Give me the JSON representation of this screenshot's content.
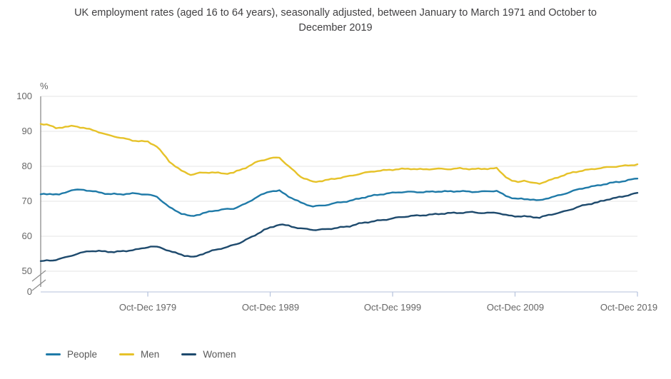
{
  "chart_data": {
    "type": "line",
    "title": "UK employment rates (aged 16 to 64 years), seasonally adjusted, between January to March 1971 and October to December 2019",
    "unit_label": "%",
    "grid": true,
    "axis_break_between": [
      50,
      0
    ],
    "ylim": [
      50,
      100
    ],
    "y_ticks": [
      100,
      90,
      80,
      70,
      60,
      50,
      0
    ],
    "x_ticks": [
      "Oct-Dec 1979",
      "Oct-Dec 1989",
      "Oct-Dec 1999",
      "Oct-Dec 2009",
      "Oct-Dec 2019"
    ],
    "x_start": "Jan-Mar 1971",
    "x_end": "Oct-Dec 2019",
    "legend_position": "bottom-left",
    "colors": {
      "people": "#1f7aa8",
      "men": "#e6c229",
      "women": "#1e4a6d",
      "gridline": "#e4e4e4",
      "y_axis": "#8c8c8c",
      "x_axis": "#c3cde2",
      "tick": "#b9c6de",
      "title_text": "#414042",
      "label_text": "#666666"
    },
    "series": [
      {
        "name": "People",
        "color": "#1f7aa8",
        "points": [
          [
            1971.0,
            72.0
          ],
          [
            1971.75,
            72.15
          ],
          [
            1972.5,
            71.85
          ],
          [
            1973.5,
            73.2
          ],
          [
            1974.5,
            73.3
          ],
          [
            1975.5,
            72.7
          ],
          [
            1976.5,
            72.1
          ],
          [
            1977.5,
            72.0
          ],
          [
            1978.75,
            72.25
          ],
          [
            1979.75,
            71.9
          ],
          [
            1980.5,
            71.3
          ],
          [
            1981.5,
            68.3
          ],
          [
            1982.5,
            66.5
          ],
          [
            1983.25,
            65.7
          ],
          [
            1984.0,
            66.3
          ],
          [
            1985.0,
            67.2
          ],
          [
            1986.0,
            67.7
          ],
          [
            1986.75,
            67.9
          ],
          [
            1987.75,
            69.3
          ],
          [
            1988.75,
            71.4
          ],
          [
            1989.75,
            72.9
          ],
          [
            1990.5,
            73.0
          ],
          [
            1991.25,
            71.4
          ],
          [
            1992.25,
            69.6
          ],
          [
            1993.25,
            68.5
          ],
          [
            1994.25,
            68.9
          ],
          [
            1995.25,
            69.6
          ],
          [
            1996.25,
            70.1
          ],
          [
            1997.25,
            71.0
          ],
          [
            1998.25,
            71.7
          ],
          [
            1999.25,
            72.2
          ],
          [
            2000.25,
            72.6
          ],
          [
            2001.25,
            72.7
          ],
          [
            2002.25,
            72.6
          ],
          [
            2003.25,
            72.8
          ],
          [
            2004.25,
            72.8
          ],
          [
            2005.25,
            72.9
          ],
          [
            2006.25,
            72.7
          ],
          [
            2007.25,
            72.8
          ],
          [
            2008.25,
            73.0
          ],
          [
            2009.0,
            71.5
          ],
          [
            2009.75,
            70.8
          ],
          [
            2010.5,
            70.6
          ],
          [
            2011.0,
            70.6
          ],
          [
            2011.75,
            70.2
          ],
          [
            2012.5,
            71.0
          ],
          [
            2013.5,
            71.8
          ],
          [
            2014.5,
            73.0
          ],
          [
            2015.5,
            73.9
          ],
          [
            2016.5,
            74.5
          ],
          [
            2017.5,
            75.2
          ],
          [
            2018.5,
            75.7
          ],
          [
            2019.25,
            76.2
          ],
          [
            2019.75,
            76.5
          ]
        ]
      },
      {
        "name": "Men",
        "color": "#e6c229",
        "points": [
          [
            1971.0,
            92.1
          ],
          [
            1971.5,
            92.0
          ],
          [
            1972.25,
            90.9
          ],
          [
            1973.0,
            91.3
          ],
          [
            1973.75,
            91.5
          ],
          [
            1974.5,
            91.0
          ],
          [
            1975.5,
            90.1
          ],
          [
            1976.5,
            88.9
          ],
          [
            1977.5,
            88.2
          ],
          [
            1978.5,
            87.4
          ],
          [
            1979.75,
            87.0
          ],
          [
            1980.5,
            85.7
          ],
          [
            1981.5,
            81.4
          ],
          [
            1982.5,
            78.7
          ],
          [
            1983.25,
            77.6
          ],
          [
            1984.0,
            78.1
          ],
          [
            1985.0,
            78.3
          ],
          [
            1986.0,
            77.9
          ],
          [
            1986.75,
            78.2
          ],
          [
            1987.75,
            79.6
          ],
          [
            1988.75,
            81.4
          ],
          [
            1989.75,
            82.3
          ],
          [
            1990.5,
            82.5
          ],
          [
            1991.25,
            80.0
          ],
          [
            1992.25,
            77.0
          ],
          [
            1993.25,
            75.5
          ],
          [
            1994.25,
            76.0
          ],
          [
            1995.25,
            76.6
          ],
          [
            1996.25,
            77.2
          ],
          [
            1997.25,
            78.0
          ],
          [
            1998.25,
            78.6
          ],
          [
            1999.25,
            78.9
          ],
          [
            2000.25,
            79.2
          ],
          [
            2001.25,
            79.3
          ],
          [
            2002.25,
            79.1
          ],
          [
            2003.25,
            79.3
          ],
          [
            2004.25,
            79.2
          ],
          [
            2005.25,
            79.4
          ],
          [
            2006.25,
            79.2
          ],
          [
            2007.25,
            79.3
          ],
          [
            2008.25,
            79.4
          ],
          [
            2009.0,
            77.0
          ],
          [
            2009.5,
            75.8
          ],
          [
            2010.0,
            75.5
          ],
          [
            2010.5,
            76.0
          ],
          [
            2011.0,
            75.3
          ],
          [
            2011.75,
            75.1
          ],
          [
            2012.5,
            75.9
          ],
          [
            2013.5,
            77.2
          ],
          [
            2014.5,
            78.3
          ],
          [
            2015.5,
            78.9
          ],
          [
            2016.5,
            79.4
          ],
          [
            2017.5,
            79.8
          ],
          [
            2018.5,
            80.1
          ],
          [
            2019.25,
            80.3
          ],
          [
            2019.75,
            80.6
          ]
        ]
      },
      {
        "name": "Women",
        "color": "#1e4a6d",
        "points": [
          [
            1971.0,
            52.9
          ],
          [
            1972.0,
            53.1
          ],
          [
            1973.0,
            53.9
          ],
          [
            1974.0,
            55.0
          ],
          [
            1975.0,
            55.8
          ],
          [
            1976.0,
            55.7
          ],
          [
            1977.0,
            55.5
          ],
          [
            1978.0,
            55.8
          ],
          [
            1979.0,
            56.3
          ],
          [
            1980.0,
            57.1
          ],
          [
            1980.75,
            56.8
          ],
          [
            1981.75,
            55.5
          ],
          [
            1982.75,
            54.5
          ],
          [
            1983.5,
            54.0
          ],
          [
            1984.25,
            55.0
          ],
          [
            1985.25,
            56.1
          ],
          [
            1986.25,
            56.9
          ],
          [
            1987.25,
            58.1
          ],
          [
            1988.25,
            59.8
          ],
          [
            1989.25,
            61.8
          ],
          [
            1990.5,
            63.4
          ],
          [
            1991.25,
            63.0
          ],
          [
            1992.25,
            62.2
          ],
          [
            1993.5,
            61.8
          ],
          [
            1994.25,
            62.0
          ],
          [
            1995.25,
            62.4
          ],
          [
            1996.25,
            62.9
          ],
          [
            1997.25,
            63.8
          ],
          [
            1998.25,
            64.3
          ],
          [
            1999.25,
            64.8
          ],
          [
            2000.25,
            65.4
          ],
          [
            2001.25,
            65.8
          ],
          [
            2002.25,
            66.0
          ],
          [
            2003.25,
            66.3
          ],
          [
            2004.25,
            66.6
          ],
          [
            2005.25,
            66.7
          ],
          [
            2006.25,
            66.9
          ],
          [
            2007.25,
            66.6
          ],
          [
            2008.25,
            66.8
          ],
          [
            2009.0,
            66.0
          ],
          [
            2010.0,
            65.7
          ],
          [
            2011.0,
            65.6
          ],
          [
            2011.75,
            65.3
          ],
          [
            2012.5,
            66.1
          ],
          [
            2013.5,
            66.8
          ],
          [
            2014.5,
            67.9
          ],
          [
            2015.5,
            69.0
          ],
          [
            2016.5,
            69.7
          ],
          [
            2017.5,
            70.7
          ],
          [
            2018.5,
            71.3
          ],
          [
            2019.25,
            72.0
          ],
          [
            2019.75,
            72.4
          ]
        ]
      }
    ]
  }
}
